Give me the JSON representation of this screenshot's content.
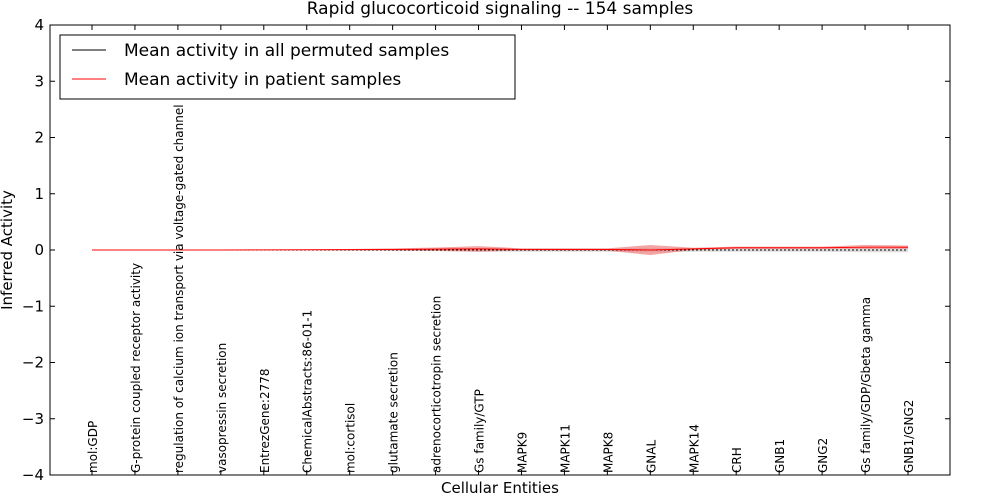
{
  "chart_data": {
    "type": "line",
    "title": "Rapid glucocorticoid signaling -- 154 samples",
    "xlabel": "Cellular Entities",
    "ylabel": "Inferred Activity",
    "ylim": [
      -4,
      4
    ],
    "yticks": [
      -4,
      -3,
      -2,
      -1,
      0,
      1,
      2,
      3,
      4
    ],
    "ytick_labels": [
      "−4",
      "−3",
      "−2",
      "−1",
      "0",
      "1",
      "2",
      "3",
      "4"
    ],
    "grid": false,
    "legend_position": "top-left",
    "categories": [
      "mol:GDP",
      "G-protein coupled receptor activity",
      "regulation of calcium ion transport via voltage-gated channel",
      "vasopressin secretion",
      "EntrezGene:2778",
      "ChemicalAbstracts:86-01-1",
      "mol:cortisol",
      "glutamate secretion",
      "adrenocorticotropin secretion",
      "Gs family/GTP",
      "MAPK9",
      "MAPK11",
      "MAPK8",
      "GNAL",
      "MAPK14",
      "CRH",
      "GNB1",
      "GNG2",
      "Gs family/GDP/Gbeta gamma",
      "GNB1/GNG2"
    ],
    "series": [
      {
        "name": "Mean activity in all permuted samples",
        "color": "#000000",
        "values": [
          0,
          0,
          0,
          0,
          0,
          0,
          0,
          0,
          0,
          0,
          0,
          0,
          0,
          0,
          0,
          0,
          0,
          0,
          0,
          0
        ],
        "band_lower": [
          0,
          0,
          0,
          0,
          0,
          0,
          -0.01,
          -0.01,
          -0.02,
          -0.03,
          -0.03,
          -0.03,
          -0.03,
          -0.04,
          -0.03,
          -0.03,
          -0.03,
          -0.03,
          -0.04,
          -0.04
        ],
        "band_upper": [
          0,
          0,
          0,
          0,
          0,
          0,
          0.01,
          0.01,
          0.02,
          0.03,
          0.03,
          0.03,
          0.03,
          0.04,
          0.03,
          0.03,
          0.03,
          0.03,
          0.04,
          0.04
        ],
        "band_color": "#bbbbbb"
      },
      {
        "name": "Mean activity in patient samples",
        "color": "#ff0000",
        "values": [
          0,
          0,
          0,
          0,
          0.002,
          0.004,
          0.006,
          0.01,
          0.015,
          0.02,
          0.01,
          0.01,
          0.01,
          0.0,
          0.02,
          0.04,
          0.04,
          0.04,
          0.05,
          0.05
        ],
        "band_lower": [
          0,
          0,
          0,
          0,
          -0.002,
          -0.004,
          -0.006,
          -0.01,
          -0.015,
          -0.03,
          -0.01,
          -0.01,
          -0.01,
          -0.09,
          0.0,
          0.02,
          0.02,
          0.02,
          0.02,
          0.02
        ],
        "band_upper": [
          0,
          0,
          0,
          0,
          0.006,
          0.012,
          0.018,
          0.03,
          0.045,
          0.07,
          0.03,
          0.03,
          0.03,
          0.09,
          0.04,
          0.06,
          0.06,
          0.06,
          0.09,
          0.08
        ],
        "band_color": "#f08080"
      }
    ]
  }
}
